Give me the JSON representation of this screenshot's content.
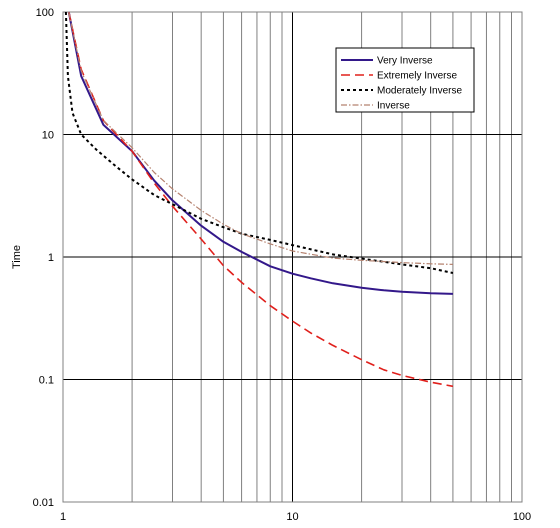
{
  "chart_data": {
    "type": "line",
    "title": "",
    "xlabel": "",
    "ylabel": "Time",
    "x_scale": "log",
    "y_scale": "log",
    "xlim": [
      1,
      100
    ],
    "ylim": [
      0.01,
      100
    ],
    "grid": true,
    "legend_position": "top-right",
    "x_tick_labels": [
      "1",
      "10",
      "100"
    ],
    "y_tick_labels": [
      "100",
      "10",
      "1",
      "0.1",
      "0.01"
    ],
    "series": [
      {
        "name": "Very Inverse",
        "color": "#33188a",
        "dash": "solid",
        "x": [
          1.06,
          1.2,
          1.5,
          2,
          2.5,
          3,
          4,
          5,
          6,
          8,
          10,
          12,
          15,
          20,
          25,
          30,
          40,
          50
        ],
        "y": [
          100,
          30,
          12,
          7.3,
          4.2,
          2.9,
          1.8,
          1.33,
          1.1,
          0.84,
          0.73,
          0.67,
          0.61,
          0.56,
          0.535,
          0.52,
          0.505,
          0.5
        ]
      },
      {
        "name": "Extremely Inverse",
        "color": "#e0201c",
        "dash": "long-dash",
        "x": [
          1.06,
          1.2,
          1.5,
          2,
          2.5,
          3,
          4,
          5,
          6,
          8,
          10,
          12,
          15,
          20,
          25,
          30,
          40,
          50
        ],
        "y": [
          100,
          34,
          13,
          7.3,
          4.0,
          2.6,
          1.4,
          0.85,
          0.62,
          0.4,
          0.3,
          0.24,
          0.19,
          0.145,
          0.12,
          0.108,
          0.095,
          0.088
        ]
      },
      {
        "name": "Moderately Inverse",
        "color": "#000000",
        "dash": "short-dash",
        "x": [
          1.03,
          1.05,
          1.1,
          1.2,
          1.4,
          1.7,
          2,
          2.5,
          3,
          4,
          5,
          6,
          8,
          10,
          15,
          20,
          30,
          40,
          50
        ],
        "y": [
          100,
          30,
          15,
          10,
          7.5,
          5.5,
          4.3,
          3.2,
          2.7,
          2.05,
          1.75,
          1.55,
          1.38,
          1.25,
          1.05,
          0.97,
          0.87,
          0.81,
          0.74
        ]
      },
      {
        "name": "Inverse",
        "color": "#b5826f",
        "dash": "dash-dot",
        "x": [
          1.06,
          1.2,
          1.5,
          2,
          2.5,
          3,
          4,
          5,
          6,
          8,
          10,
          15,
          20,
          30,
          40,
          50
        ],
        "y": [
          100,
          33,
          13,
          7.8,
          4.9,
          3.6,
          2.4,
          1.85,
          1.55,
          1.28,
          1.12,
          0.98,
          0.94,
          0.9,
          0.88,
          0.87
        ]
      }
    ]
  }
}
